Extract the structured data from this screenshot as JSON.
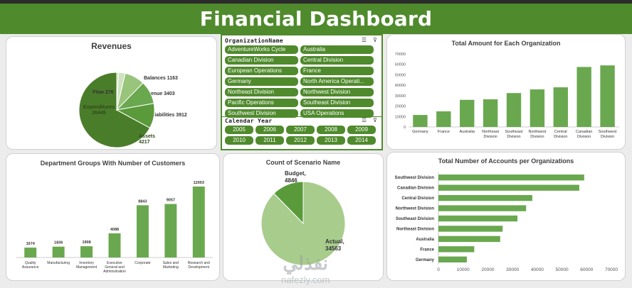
{
  "header": {
    "title": "Financial Dashboard"
  },
  "slicers": {
    "org_title": "OrganizationName",
    "org_items": [
      "AdventureWorks Cycle",
      "Australia",
      "Canadian Division",
      "Central Division",
      "European Operations",
      "France",
      "Germany",
      "North America Operati...",
      "Northeast Division",
      "Northwest Division",
      "Pacific Operations",
      "Southeast Division",
      "Southwest Division",
      "USA Operations"
    ],
    "year_title": "Calendar Year",
    "years": [
      "2005",
      "2006",
      "2007",
      "2008",
      "2009",
      "2010",
      "2011",
      "2012",
      "2013",
      "2014"
    ]
  },
  "watermark": {
    "arabic": "نفذلي",
    "latin": "nafezly.com"
  },
  "chart_data": [
    {
      "id": "revenues",
      "type": "pie",
      "title": "Revenues",
      "slices": [
        {
          "label": "Expenditures",
          "value": 26445,
          "color": "#4a7d2a"
        },
        {
          "label": "Flow",
          "value": 276,
          "color": "#b9d6a5"
        },
        {
          "label": "Balances",
          "value": 1163,
          "color": "#cfe3c0"
        },
        {
          "label": "Revenue",
          "value": 3403,
          "color": "#99c47b"
        },
        {
          "label": "Liabilities",
          "value": 3912,
          "color": "#6aa84f"
        },
        {
          "label": "Assets",
          "value": 4217,
          "color": "#5a9a3b"
        }
      ]
    },
    {
      "id": "total-amount",
      "type": "bar",
      "title": "Total Amount for Each Organization",
      "categories": [
        "Germany",
        "France",
        "Australia",
        "Northeast Division",
        "Southeast Division",
        "Northwest Division",
        "Central Division",
        "Canadian Division",
        "Southwest Division"
      ],
      "values": [
        11500,
        15000,
        26000,
        26500,
        32500,
        36000,
        38000,
        57500,
        59000
      ],
      "ylim": [
        0,
        70000
      ],
      "yticks": [
        0,
        10000,
        20000,
        30000,
        40000,
        50000,
        60000,
        70000
      ],
      "color": "#6aa84f"
    },
    {
      "id": "dept-groups",
      "type": "bar",
      "title": "Department Groups With Number of Customers",
      "categories": [
        "Quality Assurance",
        "Manufacturing",
        "Inventory Management",
        "Executive General and Administration",
        "Corporate",
        "Sales and Marketing",
        "Research and Development"
      ],
      "values": [
        1674,
        1836,
        1908,
        4088,
        8843,
        9057,
        12003
      ],
      "ylim": [
        0,
        12003
      ],
      "color": "#6aa84f"
    },
    {
      "id": "scenario",
      "type": "pie",
      "title": "Count of Scenario Name",
      "slices": [
        {
          "label": "Actual",
          "value": 34563,
          "color": "#a8cc8c"
        },
        {
          "label": "Budget",
          "value": 4846,
          "color": "#5a9a3b"
        }
      ]
    },
    {
      "id": "accounts",
      "type": "bar",
      "orientation": "horizontal",
      "title": "Total Number of Accounts per Organizations",
      "categories": [
        "Southwest Division",
        "Canadian Division",
        "Central Division",
        "Northwest Division",
        "Southeast Division",
        "Northeast Division",
        "Australia",
        "France",
        "Germany"
      ],
      "values": [
        59000,
        57000,
        38000,
        35500,
        32000,
        26000,
        25000,
        14500,
        11500
      ],
      "xlim": [
        0,
        70000
      ],
      "xticks": [
        0,
        10000,
        20000,
        30000,
        40000,
        50000,
        60000,
        70000
      ],
      "color": "#6aa84f"
    }
  ]
}
